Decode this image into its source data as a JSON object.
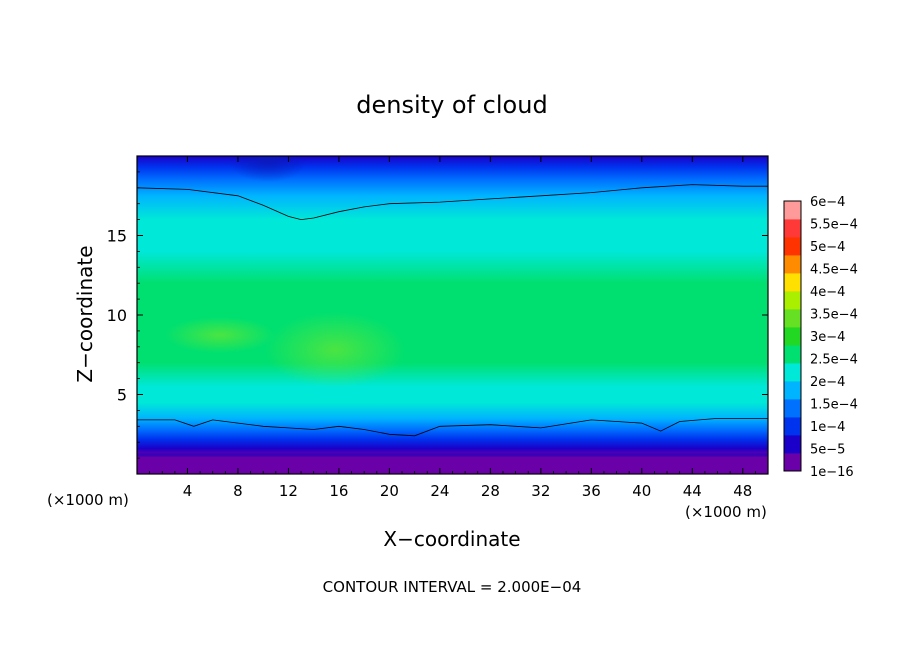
{
  "chart_data": {
    "type": "heatmap",
    "title": "density of cloud",
    "xlabel": "X−coordinate",
    "ylabel": "Z−coordinate",
    "x_unit_left": "(×1000 m)",
    "x_unit_right": "(×1000 m)",
    "xlim": [
      0,
      50
    ],
    "ylim": [
      0,
      20
    ],
    "x_ticks": [
      4,
      8,
      12,
      16,
      20,
      24,
      28,
      32,
      36,
      40,
      44,
      48
    ],
    "y_ticks": [
      5,
      10,
      15
    ],
    "colorbar_labels": [
      "1e−16",
      "5e−5",
      "1e−4",
      "1.5e−4",
      "2e−4",
      "2.5e−4",
      "3e−4",
      "3.5e−4",
      "4e−4",
      "4.5e−4",
      "5e−4",
      "5.5e−4",
      "6e−4"
    ],
    "colorbar_values": [
      0,
      5e-05,
      0.0001,
      0.00015,
      0.0002,
      0.00025,
      0.0003,
      0.00035,
      0.0004,
      0.00045,
      0.0005,
      0.00055,
      0.0006
    ],
    "colorbar_colors": [
      "#6a00a8",
      "#1a00c8",
      "#0033ee",
      "#0070ff",
      "#00b4ff",
      "#00e8d8",
      "#00e070",
      "#22d822",
      "#66e022",
      "#aaee00",
      "#ffe000",
      "#ff8c00",
      "#ff3300",
      "#ff3838",
      "#ff9a9a"
    ],
    "vertical_profile": [
      {
        "z": 0.3,
        "value": 0
      },
      {
        "z": 1.2,
        "value": 2e-05
      },
      {
        "z": 1.6,
        "value": 6e-05
      },
      {
        "z": 2.2,
        "value": 0.00011
      },
      {
        "z": 2.8,
        "value": 0.00016
      },
      {
        "z": 3.5,
        "value": 0.0002
      },
      {
        "z": 4.5,
        "value": 0.00025
      },
      {
        "z": 5.5,
        "value": 0.00029
      },
      {
        "z": 7.0,
        "value": 0.00032
      },
      {
        "z": 8.5,
        "value": 0.00034
      },
      {
        "z": 10.0,
        "value": 0.00033
      },
      {
        "z": 12.0,
        "value": 0.00031
      },
      {
        "z": 14.0,
        "value": 0.00028
      },
      {
        "z": 16.0,
        "value": 0.00025
      },
      {
        "z": 17.5,
        "value": 0.00021
      },
      {
        "z": 18.5,
        "value": 0.00015
      },
      {
        "z": 19.3,
        "value": 0.0001
      },
      {
        "z": 20.0,
        "value": 5e-05
      }
    ],
    "upper_contour": [
      {
        "x": 0,
        "z": 18.0
      },
      {
        "x": 4,
        "z": 17.9
      },
      {
        "x": 8,
        "z": 17.5
      },
      {
        "x": 10,
        "z": 16.9
      },
      {
        "x": 12,
        "z": 16.2
      },
      {
        "x": 13,
        "z": 16.0
      },
      {
        "x": 14,
        "z": 16.1
      },
      {
        "x": 16,
        "z": 16.5
      },
      {
        "x": 18,
        "z": 16.8
      },
      {
        "x": 20,
        "z": 17.0
      },
      {
        "x": 24,
        "z": 17.1
      },
      {
        "x": 28,
        "z": 17.3
      },
      {
        "x": 32,
        "z": 17.5
      },
      {
        "x": 36,
        "z": 17.7
      },
      {
        "x": 40,
        "z": 18.0
      },
      {
        "x": 44,
        "z": 18.2
      },
      {
        "x": 48,
        "z": 18.1
      },
      {
        "x": 50,
        "z": 18.1
      }
    ],
    "lower_contour": [
      {
        "x": 0,
        "z": 3.4
      },
      {
        "x": 3,
        "z": 3.4
      },
      {
        "x": 4.5,
        "z": 3.0
      },
      {
        "x": 6,
        "z": 3.4
      },
      {
        "x": 8,
        "z": 3.2
      },
      {
        "x": 10,
        "z": 3.0
      },
      {
        "x": 12,
        "z": 2.9
      },
      {
        "x": 14,
        "z": 2.8
      },
      {
        "x": 16,
        "z": 3.0
      },
      {
        "x": 18,
        "z": 2.8
      },
      {
        "x": 20,
        "z": 2.5
      },
      {
        "x": 22,
        "z": 2.4
      },
      {
        "x": 24,
        "z": 3.0
      },
      {
        "x": 28,
        "z": 3.1
      },
      {
        "x": 32,
        "z": 2.9
      },
      {
        "x": 36,
        "z": 3.4
      },
      {
        "x": 40,
        "z": 3.2
      },
      {
        "x": 41.5,
        "z": 2.7
      },
      {
        "x": 43,
        "z": 3.3
      },
      {
        "x": 46,
        "z": 3.5
      },
      {
        "x": 50,
        "z": 3.5
      }
    ],
    "grid": false,
    "legend": "right colorbar"
  },
  "footer": {
    "contour_interval": "CONTOUR INTERVAL = 2.000E−04"
  }
}
